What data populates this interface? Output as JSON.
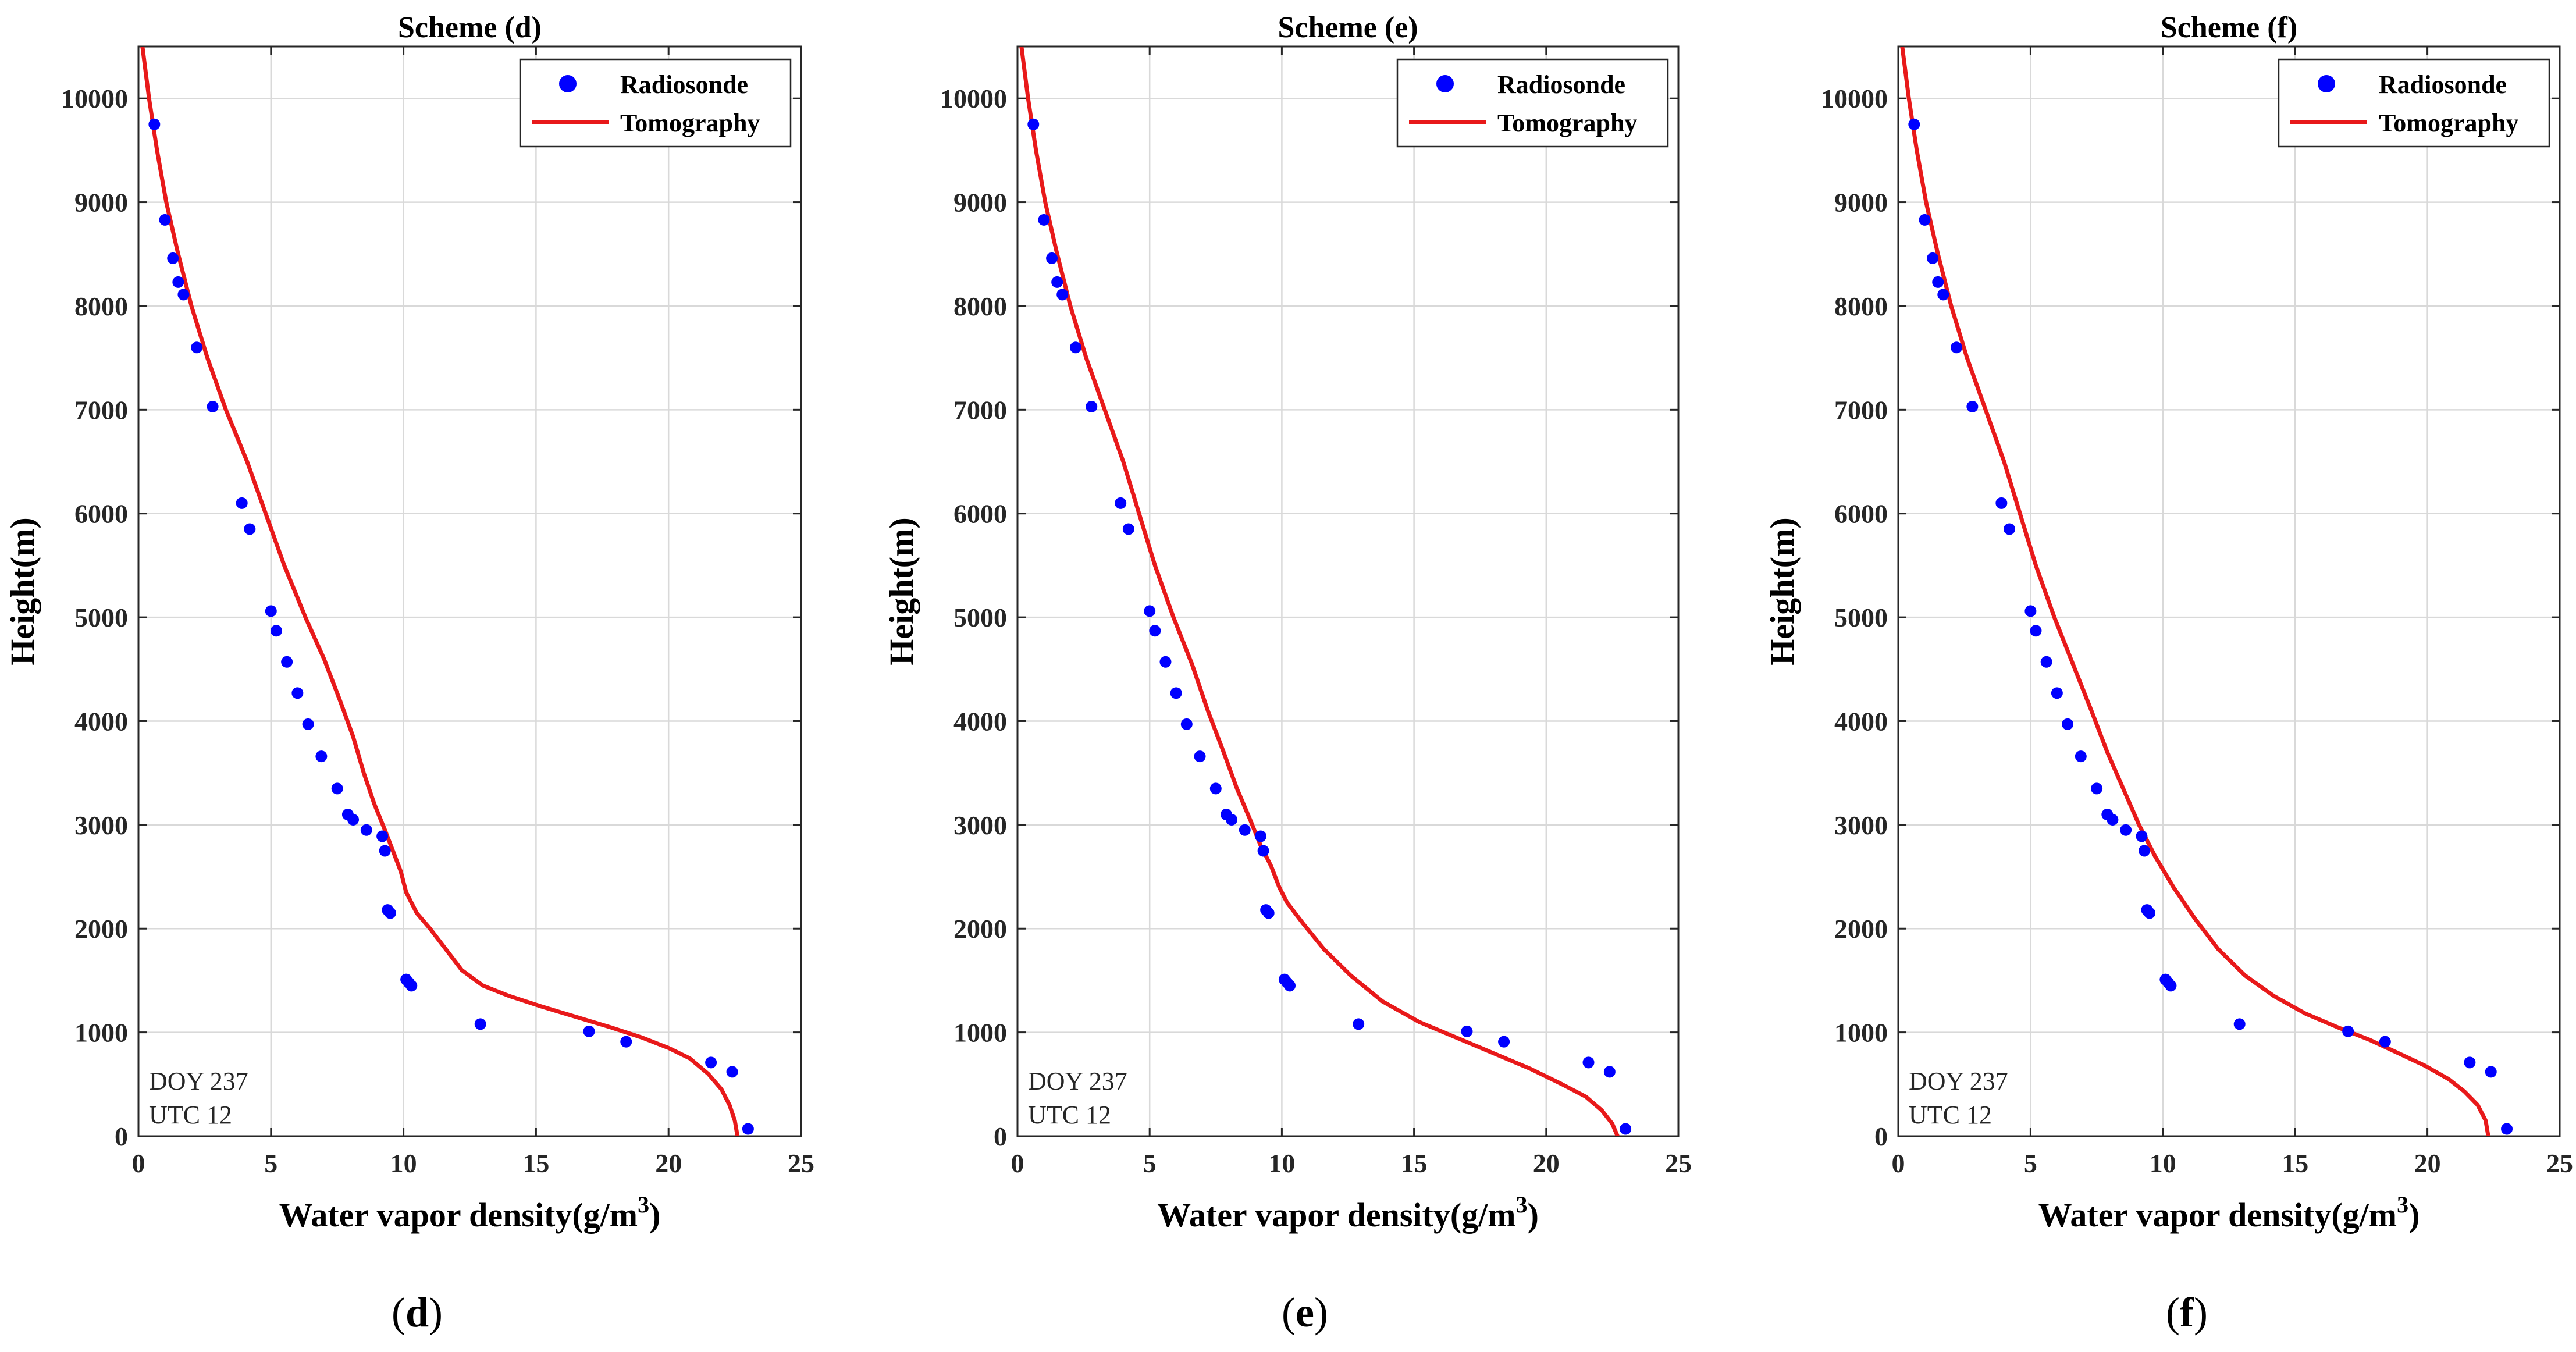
{
  "figure": {
    "panels": [
      {
        "caption_letter": "d"
      },
      {
        "caption_letter": "e"
      },
      {
        "caption_letter": "f"
      }
    ]
  },
  "colors": {
    "radiosonde": "#0000ff",
    "tomography": "#e8191a",
    "grid": "#d9d9d9",
    "axis": "#262626"
  },
  "chart_data": [
    {
      "type": "scatter+line",
      "title": "Scheme (d)",
      "xlabel": "Water vapor density(g/m",
      "xlabel_sup": "3",
      "xlabel_tail": ")",
      "ylabel": "Height(m)",
      "xlim": [
        0,
        25
      ],
      "ylim": [
        0,
        10500
      ],
      "xticks": [
        0,
        5,
        10,
        15,
        20,
        25
      ],
      "yticks": [
        0,
        1000,
        2000,
        3000,
        4000,
        5000,
        6000,
        7000,
        8000,
        9000,
        10000
      ],
      "grid": true,
      "legend": {
        "placement": "top-right",
        "entries": [
          "Radiosonde",
          "Tomography"
        ]
      },
      "annotation": [
        "DOY 237",
        "UTC 12"
      ],
      "series": [
        {
          "name": "Radiosonde",
          "kind": "scatter",
          "x": [
            0.6,
            1.0,
            1.3,
            1.5,
            1.7,
            2.2,
            2.8,
            3.9,
            4.2,
            5.0,
            5.2,
            5.6,
            6.0,
            6.4,
            6.9,
            7.5,
            7.9,
            8.1,
            8.6,
            9.2,
            9.3,
            9.4,
            9.5,
            10.1,
            10.2,
            10.3,
            12.9,
            17.0,
            18.4,
            21.6,
            22.4,
            23.0
          ],
          "y": [
            9750,
            8830,
            8460,
            8230,
            8110,
            7600,
            7030,
            6100,
            5850,
            5060,
            4870,
            4570,
            4270,
            3970,
            3660,
            3350,
            3100,
            3050,
            2950,
            2890,
            2750,
            2180,
            2150,
            1510,
            1480,
            1450,
            1080,
            1010,
            910,
            710,
            620,
            70
          ]
        },
        {
          "name": "Tomography",
          "kind": "line",
          "x": [
            0.15,
            0.4,
            0.7,
            1.05,
            1.5,
            2.0,
            2.6,
            3.3,
            4.1,
            4.8,
            5.5,
            6.3,
            7.0,
            7.6,
            8.1,
            8.5,
            8.9,
            9.3,
            9.6,
            9.9,
            10.1,
            10.5,
            11.0,
            11.6,
            12.2,
            13.0,
            14.0,
            15.2,
            16.5,
            17.8,
            19.0,
            20.0,
            20.8,
            21.5,
            22.0,
            22.3,
            22.5,
            22.6
          ],
          "y": [
            10500,
            10000,
            9500,
            9000,
            8500,
            8000,
            7500,
            7000,
            6500,
            6000,
            5500,
            5000,
            4600,
            4200,
            3850,
            3500,
            3200,
            2950,
            2750,
            2550,
            2350,
            2150,
            2000,
            1800,
            1600,
            1450,
            1350,
            1250,
            1150,
            1050,
            950,
            850,
            750,
            600,
            450,
            300,
            150,
            0
          ]
        }
      ]
    },
    {
      "type": "scatter+line",
      "title": "Scheme (e)",
      "xlabel": "Water vapor density(g/m",
      "xlabel_sup": "3",
      "xlabel_tail": ")",
      "ylabel": "Height(m)",
      "xlim": [
        0,
        25
      ],
      "ylim": [
        0,
        10500
      ],
      "xticks": [
        0,
        5,
        10,
        15,
        20,
        25
      ],
      "yticks": [
        0,
        1000,
        2000,
        3000,
        4000,
        5000,
        6000,
        7000,
        8000,
        9000,
        10000
      ],
      "grid": true,
      "legend": {
        "placement": "top-right",
        "entries": [
          "Radiosonde",
          "Tomography"
        ]
      },
      "annotation": [
        "DOY 237",
        "UTC 12"
      ],
      "series": [
        {
          "name": "Radiosonde",
          "kind": "scatter",
          "x": [
            0.6,
            1.0,
            1.3,
            1.5,
            1.7,
            2.2,
            2.8,
            3.9,
            4.2,
            5.0,
            5.2,
            5.6,
            6.0,
            6.4,
            6.9,
            7.5,
            7.9,
            8.1,
            8.6,
            9.2,
            9.3,
            9.4,
            9.5,
            10.1,
            10.2,
            10.3,
            12.9,
            17.0,
            18.4,
            21.6,
            22.4,
            23.0
          ],
          "y": [
            9750,
            8830,
            8460,
            8230,
            8110,
            7600,
            7030,
            6100,
            5850,
            5060,
            4870,
            4570,
            4270,
            3970,
            3660,
            3350,
            3100,
            3050,
            2950,
            2890,
            2750,
            2180,
            2150,
            1510,
            1480,
            1450,
            1080,
            1010,
            910,
            710,
            620,
            70
          ]
        },
        {
          "name": "Tomography",
          "kind": "line",
          "x": [
            0.15,
            0.4,
            0.7,
            1.05,
            1.5,
            2.0,
            2.6,
            3.3,
            4.0,
            4.6,
            5.2,
            5.9,
            6.6,
            7.2,
            7.8,
            8.3,
            8.8,
            9.2,
            9.6,
            9.9,
            10.2,
            10.8,
            11.6,
            12.6,
            13.8,
            15.2,
            16.6,
            18.0,
            19.4,
            20.6,
            21.5,
            22.1,
            22.5,
            22.7
          ],
          "y": [
            10500,
            10000,
            9500,
            9000,
            8500,
            8000,
            7500,
            7000,
            6500,
            6000,
            5500,
            5000,
            4550,
            4100,
            3700,
            3350,
            3050,
            2800,
            2600,
            2400,
            2250,
            2050,
            1800,
            1550,
            1300,
            1100,
            950,
            800,
            650,
            500,
            380,
            250,
            120,
            0
          ]
        }
      ]
    },
    {
      "type": "scatter+line",
      "title": "Scheme (f)",
      "xlabel": "Water vapor density(g/m",
      "xlabel_sup": "3",
      "xlabel_tail": ")",
      "ylabel": "Height(m)",
      "xlim": [
        0,
        25
      ],
      "ylim": [
        0,
        10500
      ],
      "xticks": [
        0,
        5,
        10,
        15,
        20,
        25
      ],
      "yticks": [
        0,
        1000,
        2000,
        3000,
        4000,
        5000,
        6000,
        7000,
        8000,
        9000,
        10000
      ],
      "grid": true,
      "legend": {
        "placement": "top-right",
        "entries": [
          "Radiosonde",
          "Tomography"
        ]
      },
      "annotation": [
        "DOY 237",
        "UTC 12"
      ],
      "series": [
        {
          "name": "Radiosonde",
          "kind": "scatter",
          "x": [
            0.6,
            1.0,
            1.3,
            1.5,
            1.7,
            2.2,
            2.8,
            3.9,
            4.2,
            5.0,
            5.2,
            5.6,
            6.0,
            6.4,
            6.9,
            7.5,
            7.9,
            8.1,
            8.6,
            9.2,
            9.3,
            9.4,
            9.5,
            10.1,
            10.2,
            10.3,
            12.9,
            17.0,
            18.4,
            21.6,
            22.4,
            23.0
          ],
          "y": [
            9750,
            8830,
            8460,
            8230,
            8110,
            7600,
            7030,
            6100,
            5850,
            5060,
            4870,
            4570,
            4270,
            3970,
            3660,
            3350,
            3100,
            3050,
            2950,
            2890,
            2750,
            2180,
            2150,
            1510,
            1480,
            1450,
            1080,
            1010,
            910,
            710,
            620,
            70
          ]
        },
        {
          "name": "Tomography",
          "kind": "line",
          "x": [
            0.15,
            0.4,
            0.7,
            1.05,
            1.5,
            2.0,
            2.6,
            3.3,
            4.0,
            4.6,
            5.2,
            5.9,
            6.6,
            7.3,
            7.9,
            8.5,
            9.1,
            9.7,
            10.4,
            11.2,
            12.1,
            13.1,
            14.2,
            15.4,
            16.6,
            17.8,
            18.9,
            19.9,
            20.8,
            21.4,
            21.9,
            22.2,
            22.3
          ],
          "y": [
            10500,
            10000,
            9500,
            9000,
            8500,
            8000,
            7500,
            7000,
            6500,
            6000,
            5500,
            5000,
            4550,
            4100,
            3700,
            3350,
            3000,
            2700,
            2400,
            2100,
            1800,
            1550,
            1350,
            1180,
            1050,
            930,
            800,
            680,
            550,
            430,
            300,
            150,
            0
          ]
        }
      ]
    }
  ]
}
